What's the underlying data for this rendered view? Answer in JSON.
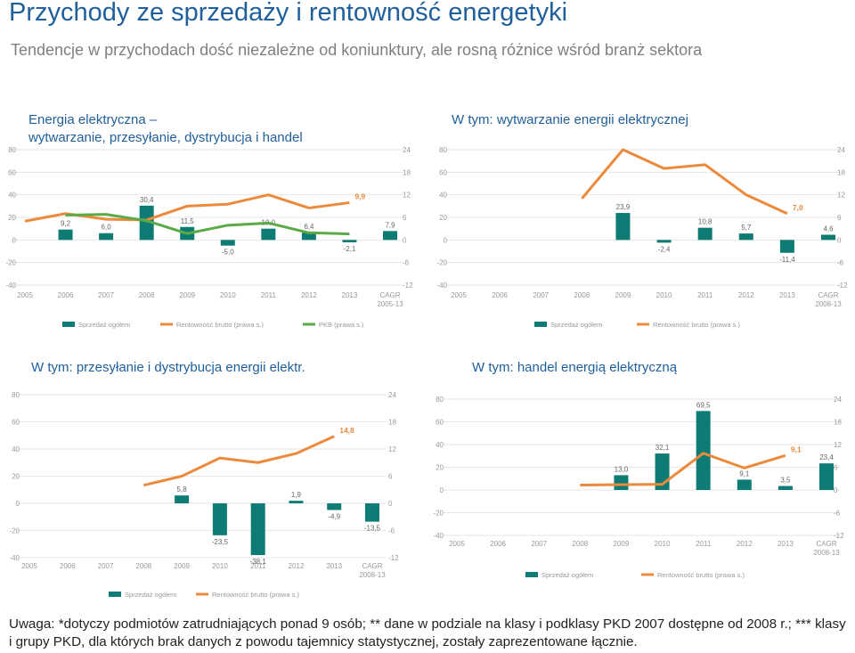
{
  "page": {
    "title": "Przychody ze sprzedaży i rentowność energetyki",
    "subtitle": "Tendencje w przychodach dość niezależne od koniunktury, ale rosną różnice wśród branż sektora",
    "note": "Uwaga: *dotyczy podmiotów zatrudniających ponad 9 osób; ** dane w podziale na klasy i podklasy PKD 2007 dostępne od 2008 r.; *** klasy i grupy PKD, dla których brak danych z powodu tajemnicy statystycznej, zostały zaprezentowane łącznie."
  },
  "colors": {
    "bar": "#0e7c74",
    "rent": "#ec8a3c",
    "pkb": "#5aaa46",
    "axis": "#999999",
    "title": "#1f5f9c"
  },
  "chart_data": [
    {
      "type": "bar",
      "title_lines": [
        "Energia elektryczna –",
        "wytwarzanie, przesyłanie, dystrybucja i handel"
      ],
      "categories": [
        "2005",
        "2006",
        "2007",
        "2008",
        "2009",
        "2010",
        "2011",
        "2012",
        "2013",
        "CAGR"
      ],
      "category_sub": "2005-13",
      "ylim": [
        -40,
        80
      ],
      "yticks": [
        "-40",
        "-20",
        "0",
        "20",
        "40",
        "60",
        "80"
      ],
      "ylim_right": [
        -12,
        24
      ],
      "yticks_right": [
        "-12",
        "-6",
        "0",
        "6",
        "12",
        "18",
        "24"
      ],
      "series": [
        {
          "name": "Sprzedaż ogółem",
          "kind": "bar",
          "values": [
            null,
            9.2,
            6.0,
            30.4,
            11.5,
            -5.0,
            10.0,
            6.4,
            -2.1,
            7.9
          ],
          "labels": [
            "",
            "9,2",
            "6,0",
            "30,4",
            "11,5",
            "-5,0",
            "10,0",
            "6,4",
            "-2,1",
            "7,9"
          ]
        },
        {
          "name": "Rentowność brutto (prawa s.)",
          "kind": "line",
          "axis": "right",
          "values": [
            5,
            7,
            5.5,
            5.3,
            9,
            9.5,
            12,
            8.5,
            9.9,
            null
          ],
          "end_label": "9,9"
        },
        {
          "name": "PKB (prawa s.)",
          "kind": "line",
          "axis": "right",
          "values": [
            null,
            6.6,
            6.8,
            5.1,
            1.7,
            3.9,
            4.5,
            1.9,
            1.6,
            null
          ]
        }
      ],
      "legend": [
        "Sprzedaż ogółem",
        "Rentowność brutto (prawa s.)",
        "PKB (prawa s.)"
      ]
    },
    {
      "type": "bar",
      "title_lines": [
        "W tym: wytwarzanie energii elektrycznej"
      ],
      "categories": [
        "2005",
        "2006",
        "2007",
        "2008",
        "2009",
        "2010",
        "2011",
        "2012",
        "2013",
        "CAGR"
      ],
      "category_sub": "2008-13",
      "ylim": [
        -40,
        80
      ],
      "yticks": [
        "-40",
        "-20",
        "0",
        "20",
        "40",
        "60",
        "80"
      ],
      "ylim_right": [
        -12,
        24
      ],
      "yticks_right": [
        "-12",
        "-6",
        "0",
        "6",
        "12",
        "18",
        "24"
      ],
      "series": [
        {
          "name": "Sprzedaż ogółem",
          "kind": "bar",
          "values": [
            null,
            null,
            null,
            null,
            23.9,
            -2.4,
            10.8,
            5.7,
            -11.4,
            4.6
          ],
          "labels": [
            "",
            "",
            "",
            "",
            "23,9",
            "-2,4",
            "10,8",
            "5,7",
            "-11,4",
            "4,6"
          ]
        },
        {
          "name": "Rentowność brutto (prawa s.)",
          "kind": "line",
          "axis": "right",
          "values": [
            null,
            null,
            null,
            11,
            24,
            19,
            20,
            12,
            7,
            null
          ],
          "end_label": "7,0"
        }
      ],
      "legend": [
        "Sprzedaż ogółem",
        "Rentowność brutto (prawa s.)"
      ]
    },
    {
      "type": "bar",
      "title_lines": [
        "W tym: przesyłanie i dystrybucja energii elektr."
      ],
      "categories": [
        "2005",
        "2006",
        "2007",
        "2008",
        "2009",
        "2010",
        "2011",
        "2012",
        "2013",
        "CAGR"
      ],
      "category_sub": "2008-13",
      "ylim": [
        -40,
        80
      ],
      "yticks": [
        "-40",
        "-20",
        "0",
        "20",
        "40",
        "60",
        "80"
      ],
      "ylim_right": [
        -12,
        24
      ],
      "yticks_right": [
        "-12",
        "-6",
        "0",
        "6",
        "12",
        "18",
        "24"
      ],
      "series": [
        {
          "name": "Sprzedaż ogółem",
          "kind": "bar",
          "values": [
            null,
            null,
            null,
            null,
            5.8,
            -23.5,
            -38.1,
            1.9,
            -4.9,
            -13.5
          ],
          "labels": [
            "",
            "",
            "",
            "",
            "5,8",
            "-23,5",
            "-38,1",
            "1,9",
            "-4,9",
            "-13,5"
          ]
        },
        {
          "name": "Rentowność brutto (prawa s.)",
          "kind": "line",
          "axis": "right",
          "values": [
            null,
            null,
            null,
            4,
            6,
            10,
            9,
            11,
            14.8,
            null
          ],
          "end_label": "14,8"
        }
      ],
      "legend": [
        "Sprzedaż ogółem",
        "Rentowność brutto (prawa s.)"
      ]
    },
    {
      "type": "bar",
      "title_lines": [
        "W tym: handel energią elektryczną"
      ],
      "categories": [
        "2005",
        "2006",
        "2007",
        "2008",
        "2009",
        "2010",
        "2011",
        "2012",
        "2013",
        "CAGR"
      ],
      "category_sub": "2008-13",
      "ylim": [
        -40,
        80
      ],
      "yticks": [
        "-40",
        "-20",
        "0",
        "20",
        "40",
        "60",
        "80"
      ],
      "ylim_right": [
        -12,
        24
      ],
      "yticks_right": [
        "-12",
        "-6",
        "0",
        "6",
        "12",
        "18",
        "24"
      ],
      "series": [
        {
          "name": "Sprzedaż ogółem",
          "kind": "bar",
          "values": [
            null,
            null,
            null,
            null,
            13.0,
            32.1,
            69.5,
            9.1,
            3.5,
            23.4
          ],
          "labels": [
            "",
            "",
            "",
            "",
            "13,0",
            "32,1",
            "69,5",
            "9,1",
            "3,5",
            "23,4"
          ]
        },
        {
          "name": "Rentowność brutto (prawa s.)",
          "kind": "line",
          "axis": "right",
          "values": [
            null,
            null,
            null,
            1.3,
            1.4,
            1.5,
            9.7,
            5.8,
            9.1,
            null
          ],
          "end_label": "9,1"
        }
      ],
      "legend": [
        "Sprzedaż ogółem",
        "Rentowność brutto (prawa s.)"
      ]
    }
  ]
}
